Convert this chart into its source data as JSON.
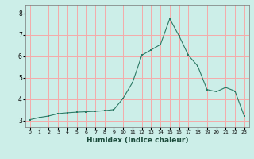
{
  "title": "",
  "xlabel": "Humidex (Indice chaleur)",
  "ylabel": "",
  "background_color": "#cceee8",
  "grid_color": "#f5aaaa",
  "line_color": "#2d7a65",
  "marker_color": "#2d7a65",
  "xlim": [
    -0.5,
    23.5
  ],
  "ylim": [
    2.7,
    8.4
  ],
  "xticks": [
    0,
    1,
    2,
    3,
    4,
    5,
    6,
    7,
    8,
    9,
    10,
    11,
    12,
    13,
    14,
    15,
    16,
    17,
    18,
    19,
    20,
    21,
    22,
    23
  ],
  "yticks": [
    3,
    4,
    5,
    6,
    7,
    8
  ],
  "x": [
    0,
    1,
    2,
    3,
    4,
    5,
    6,
    7,
    8,
    9,
    10,
    11,
    12,
    13,
    14,
    15,
    16,
    17,
    18,
    19,
    20,
    21,
    22,
    23
  ],
  "y": [
    3.05,
    3.15,
    3.22,
    3.33,
    3.37,
    3.4,
    3.42,
    3.44,
    3.47,
    3.52,
    4.05,
    4.78,
    6.05,
    6.3,
    6.55,
    7.75,
    6.95,
    6.05,
    5.55,
    4.45,
    4.35,
    4.55,
    4.38,
    3.22
  ]
}
